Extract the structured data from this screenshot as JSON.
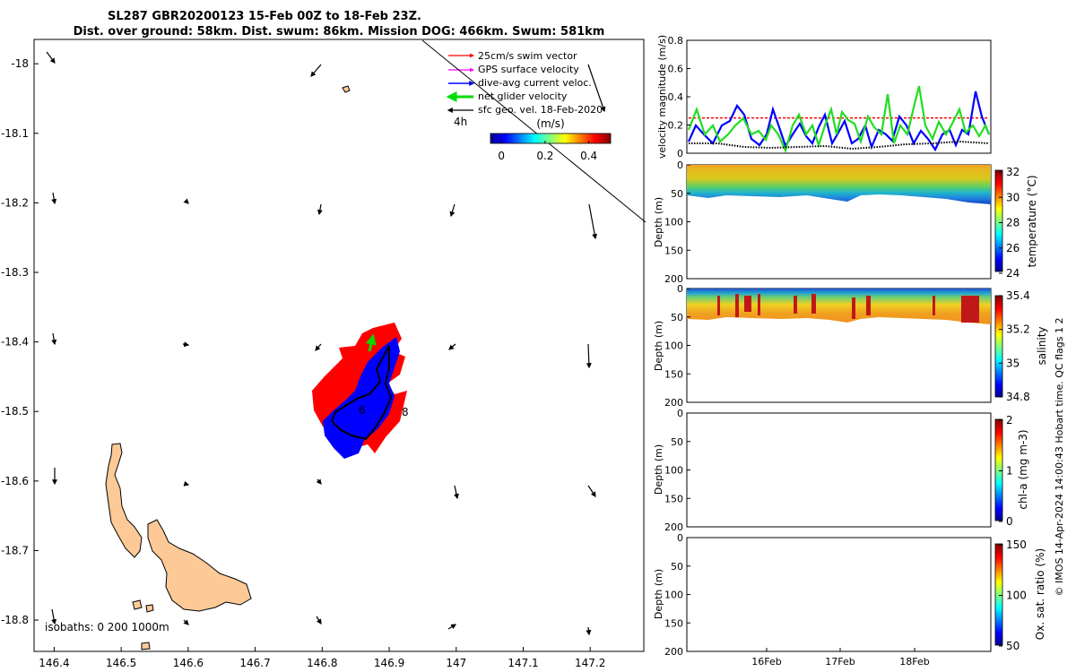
{
  "title_line1": "SL287 GBR20200123 15-Feb 00Z to 18-Feb 23Z.",
  "title_line2": "Dist. over ground: 58km. Dist. swum: 86km. Mission DOG: 466km. Swum: 581km",
  "credit": "© IMOS 14-Apr-2024 14:00:43 Hobart time. QC flags 1  2",
  "colors": {
    "swim": "#ff0000",
    "gps": "#ff00ff",
    "current": "#0000ff",
    "net": "#00dd00",
    "sfc": "#000000",
    "land": "#fcc997"
  },
  "chart_data": [
    {
      "type": "map",
      "x_ticks": [
        "146.4",
        "146.5",
        "146.6",
        "146.7",
        "146.8",
        "146.9",
        "147",
        "147.1",
        "147.2"
      ],
      "y_ticks": [
        "-18",
        "-18.1",
        "-18.2",
        "-18.3",
        "-18.4",
        "-18.5",
        "-18.6",
        "-18.7",
        "-18.8"
      ],
      "xlim": [
        146.37,
        147.28
      ],
      "ylim": [
        -18.845,
        -17.965
      ],
      "legend": [
        {
          "key": "swim",
          "label": "25cm/s swim vector"
        },
        {
          "key": "gps",
          "label": "GPS surface velocity"
        },
        {
          "key": "current",
          "label": "dive-avg current veloc."
        },
        {
          "key": "net",
          "label": "net glider velocity"
        },
        {
          "key": "sfc",
          "label": "sfc geo. vel. 18-Feb-2020"
        }
      ],
      "legend_extra": "4h",
      "colorbar": {
        "label": "(m/s)",
        "ticks": [
          "0",
          "0.2",
          "0.4"
        ],
        "range": [
          -0.05,
          0.5
        ]
      },
      "isobaths_label": "isobaths: 0   200  1000m",
      "track_markers": [
        "6",
        "8"
      ]
    },
    {
      "type": "line",
      "ylabel": "velocity magnitude (m/s)",
      "ylim": [
        0,
        0.8
      ],
      "y_ticks": [
        "0",
        "0.2",
        "0.4",
        "0.6",
        "0.8"
      ],
      "swim_speed": 0.25
    },
    {
      "type": "heatmap",
      "ylabel": "Depth (m)",
      "colorbar_label": "temperature (°C)",
      "y_ticks": [
        "0",
        "50",
        "100",
        "150",
        "200"
      ],
      "cb_ticks": [
        "32",
        "30",
        "28",
        "26",
        "24"
      ]
    },
    {
      "type": "heatmap",
      "ylabel": "Depth (m)",
      "colorbar_label": "salinity",
      "y_ticks": [
        "0",
        "50",
        "100",
        "150",
        "200"
      ],
      "cb_ticks": [
        "35.4",
        "35.2",
        "35",
        "34.8"
      ]
    },
    {
      "type": "heatmap",
      "ylabel": "Depth (m)",
      "colorbar_label": "chl-a (mg m-3)",
      "y_ticks": [
        "0",
        "50",
        "100",
        "150",
        "200"
      ],
      "cb_ticks": [
        "2",
        "1",
        "0"
      ]
    },
    {
      "type": "heatmap",
      "ylabel": "Depth (m)",
      "colorbar_label": "Ox. sat. ratio (%)",
      "y_ticks": [
        "0",
        "50",
        "100",
        "150",
        "200"
      ],
      "cb_ticks": [
        "150",
        "100",
        "50"
      ],
      "x_ticks": [
        "16Feb",
        "17Feb",
        "18Feb"
      ]
    }
  ]
}
